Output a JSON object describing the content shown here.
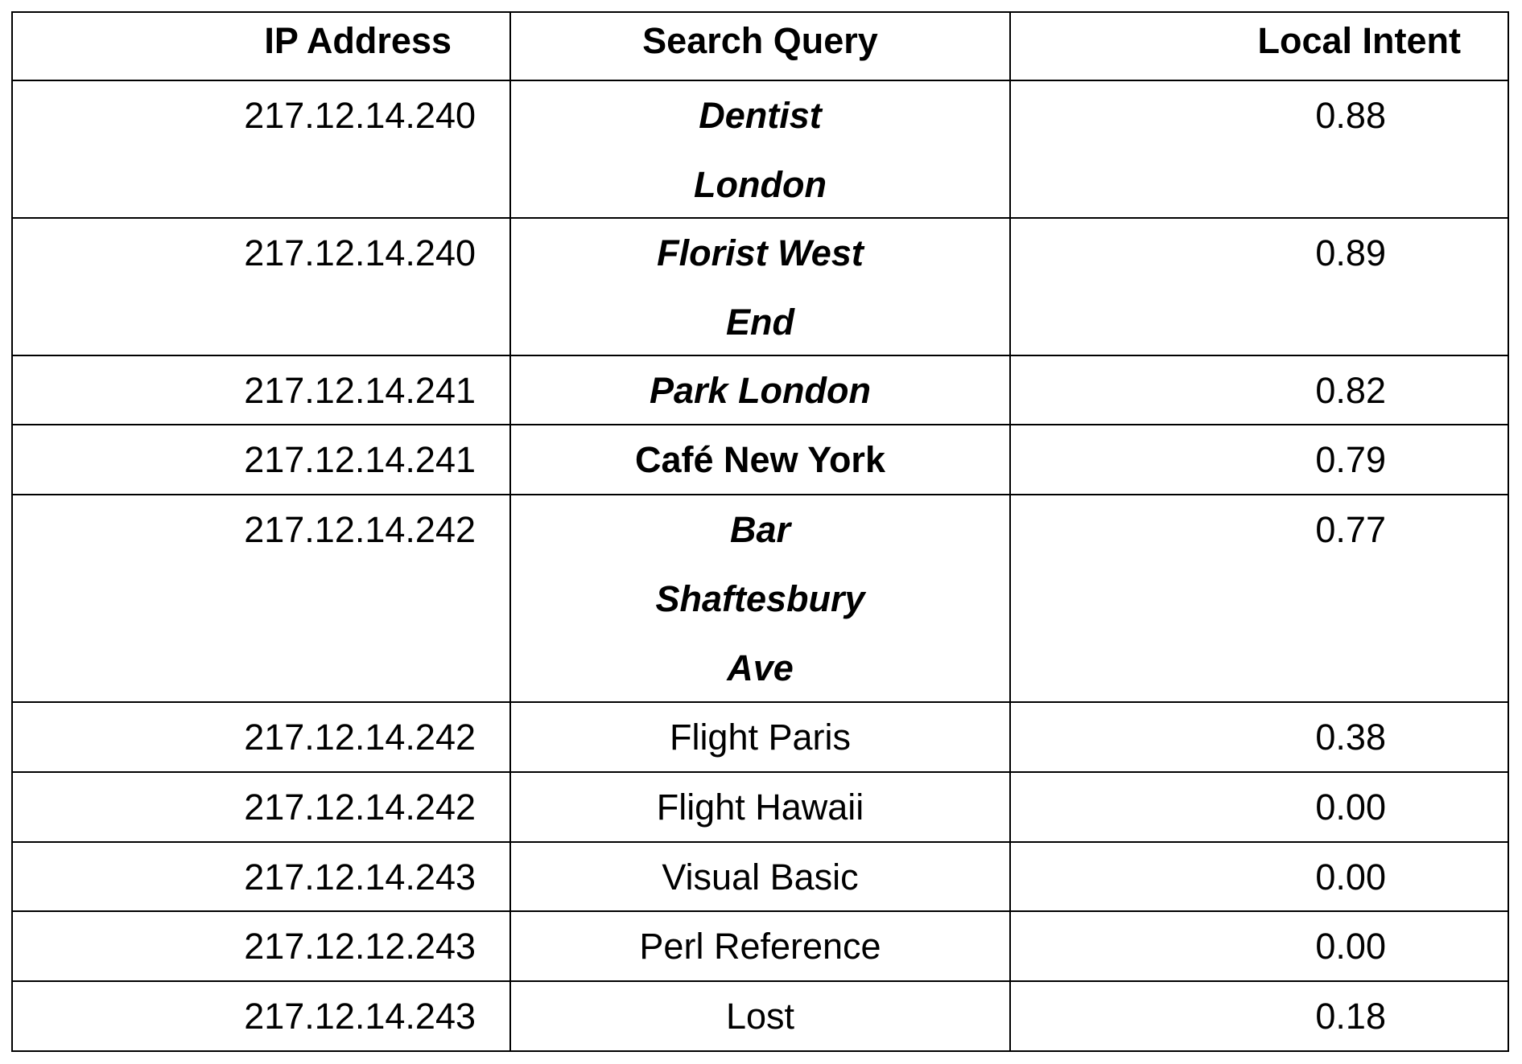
{
  "headers": [
    "IP Address",
    "Search Query",
    "Local Intent"
  ],
  "rows": [
    {
      "ip": "217.12.14.240",
      "query": [
        "Dentist",
        "London"
      ],
      "intent": "0.88",
      "style": "bold-italic"
    },
    {
      "ip": "217.12.14.240",
      "query": [
        "Florist West",
        "End"
      ],
      "intent": "0.89",
      "style": "bold-italic"
    },
    {
      "ip": "217.12.14.241",
      "query": [
        "Park London"
      ],
      "intent": "0.82",
      "style": "bold-italic"
    },
    {
      "ip": "217.12.14.241",
      "query": [
        "Café New York"
      ],
      "intent": "0.79",
      "style": "bold"
    },
    {
      "ip": "217.12.14.242",
      "query": [
        "Bar",
        "Shaftesbury",
        "Ave"
      ],
      "intent": "0.77",
      "style": "bold-italic"
    },
    {
      "ip": "217.12.14.242",
      "query": [
        "Flight Paris"
      ],
      "intent": "0.38",
      "style": "normal"
    },
    {
      "ip": "217.12.14.242",
      "query": [
        "Flight Hawaii"
      ],
      "intent": "0.00",
      "style": "normal"
    },
    {
      "ip": "217.12.14.243",
      "query": [
        "Visual Basic"
      ],
      "intent": "0.00",
      "style": "normal"
    },
    {
      "ip": "217.12.12.243",
      "query": [
        "Perl Reference"
      ],
      "intent": "0.00",
      "style": "normal"
    },
    {
      "ip": "217.12.14.243",
      "query": [
        "Lost"
      ],
      "intent": "0.18",
      "style": "normal"
    }
  ]
}
